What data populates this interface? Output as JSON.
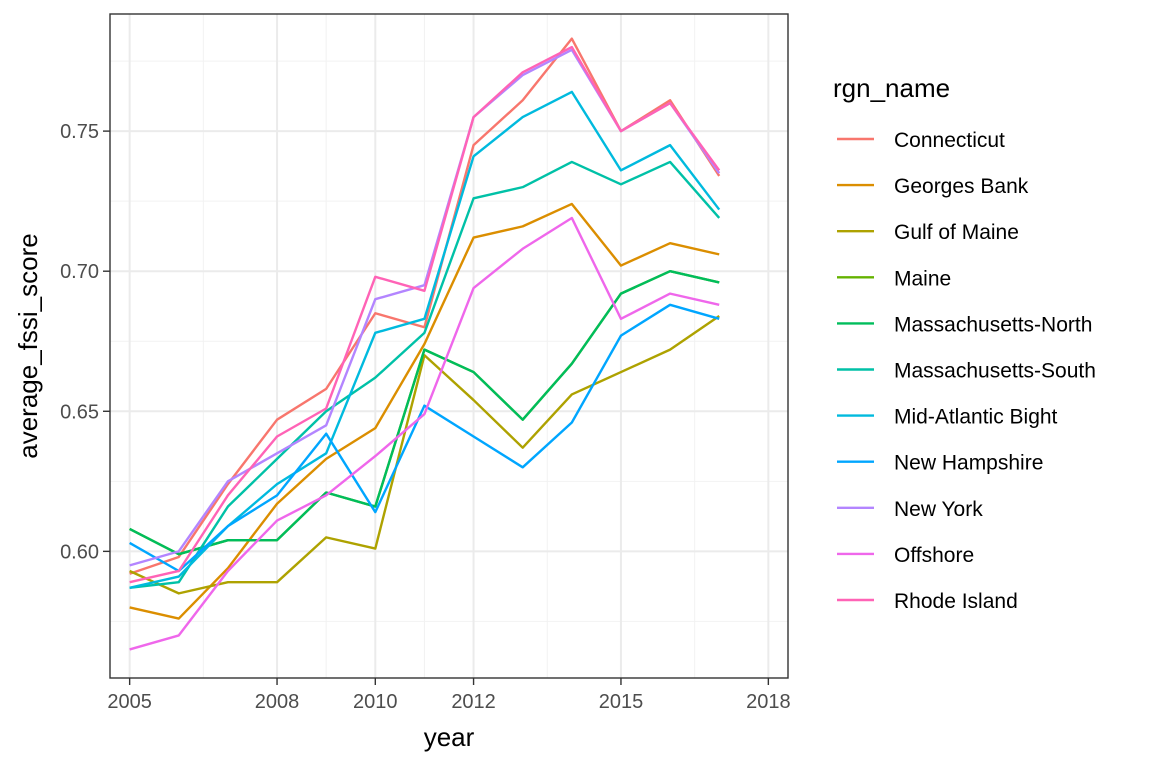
{
  "chart_data": {
    "type": "line",
    "xlabel": "year",
    "ylabel": "average_fssi_score",
    "x_ticks": [
      "2005",
      "2008",
      "2010",
      "2012",
      "2015",
      "2018"
    ],
    "y_ticks": [
      "0.60",
      "0.65",
      "0.70",
      "0.75"
    ],
    "xlim": [
      2004.6,
      2018.4
    ],
    "ylim": [
      0.5548,
      0.7918
    ],
    "grid": true,
    "legend": {
      "title": "rgn_name",
      "position": "right"
    },
    "x": [
      2005,
      2006,
      2007,
      2008,
      2009,
      2010,
      2011,
      2012,
      2013,
      2014,
      2015,
      2016,
      2017
    ],
    "series": [
      {
        "name": "Connecticut",
        "color": "#F8766D",
        "values": [
          0.592,
          0.598,
          0.624,
          0.647,
          0.658,
          0.685,
          0.68,
          0.745,
          0.761,
          0.783,
          0.75,
          0.761,
          0.734
        ]
      },
      {
        "name": "Georges Bank",
        "color": "#DB8E00",
        "values": [
          0.58,
          0.576,
          0.594,
          0.617,
          0.633,
          0.644,
          0.674,
          0.712,
          0.716,
          0.724,
          0.702,
          0.71,
          0.706
        ]
      },
      {
        "name": "Gulf of Maine",
        "color": "#AEA200",
        "values": [
          0.593,
          0.585,
          0.589,
          0.589,
          0.605,
          0.601,
          0.67,
          0.654,
          0.637,
          0.656,
          0.664,
          0.672,
          0.684
        ]
      },
      {
        "name": "Maine",
        "color": "#64B200",
        "values": [
          0.608,
          0.599,
          0.604,
          0.604,
          0.621,
          0.616,
          0.672,
          0.664,
          0.647,
          0.667,
          0.692,
          0.7,
          0.696
        ]
      },
      {
        "name": "Massachusetts-North",
        "color": "#00BD5C",
        "values": [
          0.608,
          0.599,
          0.604,
          0.604,
          0.621,
          0.616,
          0.672,
          0.664,
          0.647,
          0.667,
          0.692,
          0.7,
          0.696
        ]
      },
      {
        "name": "Massachusetts-South",
        "color": "#00C1A7",
        "values": [
          0.587,
          0.589,
          0.616,
          0.633,
          0.65,
          0.662,
          0.678,
          0.726,
          0.73,
          0.739,
          0.731,
          0.739,
          0.719
        ]
      },
      {
        "name": "Mid-Atlantic Bight",
        "color": "#00BADE",
        "values": [
          0.587,
          0.591,
          0.609,
          0.624,
          0.635,
          0.678,
          0.683,
          0.741,
          0.755,
          0.764,
          0.736,
          0.745,
          0.722
        ]
      },
      {
        "name": "New Hampshire",
        "color": "#00A6FF",
        "values": [
          0.603,
          0.593,
          0.609,
          0.62,
          0.642,
          0.614,
          0.652,
          0.641,
          0.63,
          0.646,
          0.677,
          0.688,
          0.683
        ]
      },
      {
        "name": "New York",
        "color": "#B385FF",
        "values": [
          0.595,
          0.6,
          0.625,
          0.635,
          0.645,
          0.69,
          0.695,
          0.755,
          0.77,
          0.779,
          0.75,
          0.76,
          0.735
        ]
      },
      {
        "name": "Offshore",
        "color": "#EF67EB",
        "values": [
          0.565,
          0.57,
          0.593,
          0.611,
          0.62,
          0.634,
          0.649,
          0.694,
          0.708,
          0.719,
          0.683,
          0.692,
          0.688
        ]
      },
      {
        "name": "Rhode Island",
        "color": "#FF63B6",
        "values": [
          0.589,
          0.593,
          0.62,
          0.641,
          0.651,
          0.698,
          0.693,
          0.755,
          0.771,
          0.78,
          0.75,
          0.76,
          0.736
        ]
      }
    ]
  }
}
